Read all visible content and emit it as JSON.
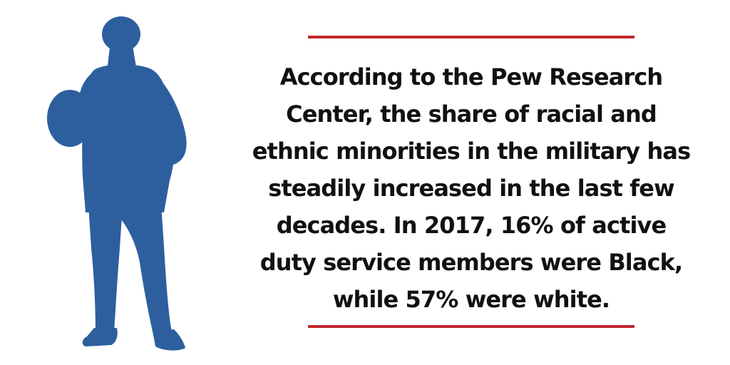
{
  "colors": {
    "silhouette": "#2d5f9e",
    "rule": "#c0272d",
    "text": "#111111",
    "background": "#ffffff"
  },
  "icons": {
    "figure": "person-silhouette-icon"
  },
  "quote": {
    "lines": [
      "According to the Pew Research",
      "Center, the share of racial and",
      "ethnic minorities in the military has",
      "steadily increased in the last few",
      "decades. In 2017, 16% of active",
      "duty service members were Black,",
      "while 57% were white."
    ]
  }
}
